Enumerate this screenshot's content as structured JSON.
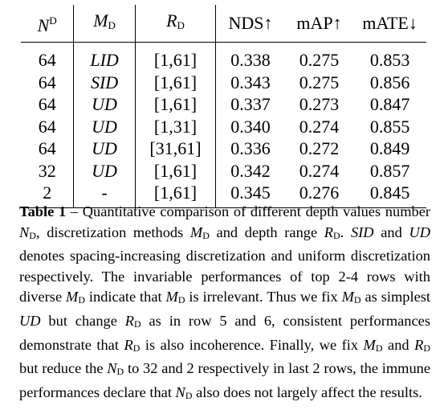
{
  "table": {
    "headers": {
      "nd_base": "N",
      "nd_sup": "D",
      "md_base": "M",
      "md_sub": "D",
      "rd_base": "R",
      "rd_sub": "D",
      "nds": "NDS↑",
      "map": "mAP↑",
      "mate": "mATE↓"
    },
    "rows": [
      {
        "nd": "64",
        "md": "LID",
        "rd": "[1,61]",
        "nds": "0.338",
        "map": "0.275",
        "mate": "0.853"
      },
      {
        "nd": "64",
        "md": "SID",
        "rd": "[1,61]",
        "nds": "0.343",
        "map": "0.275",
        "mate": "0.856"
      },
      {
        "nd": "64",
        "md": "UD",
        "rd": "[1,61]",
        "nds": "0.337",
        "map": "0.273",
        "mate": "0.847"
      },
      {
        "nd": "64",
        "md": "UD",
        "rd": "[1,31]",
        "nds": "0.340",
        "map": "0.274",
        "mate": "0.855"
      },
      {
        "nd": "64",
        "md": "UD",
        "rd": "[31,61]",
        "nds": "0.336",
        "map": "0.272",
        "mate": "0.849"
      },
      {
        "nd": "32",
        "md": "UD",
        "rd": "[1,61]",
        "nds": "0.342",
        "map": "0.274",
        "mate": "0.857"
      },
      {
        "nd": "2",
        "md": "-",
        "rd": "[1,61]",
        "nds": "0.345",
        "map": "0.276",
        "mate": "0.845"
      }
    ]
  },
  "caption": {
    "label": "Table 1",
    "t1": " – Quantitative comparison of different depth values number ",
    "v_n": "N",
    "sub_d": "D",
    "t2": ", discretization methods ",
    "v_m": "M",
    "t3": " and depth range ",
    "v_r": "R",
    "t4": ". ",
    "v_sid": "SID",
    "t5": " and ",
    "v_ud": "UD",
    "t6": " denotes spacing-increasing discretization and uniform discretization respectively. The invariable performances of top 2-4 rows with diverse ",
    "t7": " indicate that ",
    "t8": " is irrelevant. Thus we fix ",
    "t9": " as simplest ",
    "t10": " but change ",
    "t11": " as in row 5 and 6, consistent performances demonstrate that ",
    "t12": " is also incoherence. Finally, we fix ",
    "t13": " and ",
    "t14": " but reduce the ",
    "t15": " to 32 and 2 respectively in last 2 rows, the immune performances declare that ",
    "t16": " also does not largely affect the results."
  }
}
